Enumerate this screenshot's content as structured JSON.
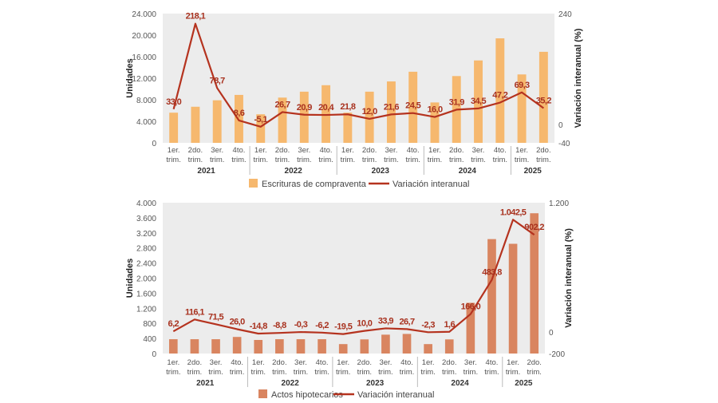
{
  "chart_data": [
    {
      "type": "bar+line",
      "categories": [
        "1er. trim.",
        "2do. trim.",
        "3er. trim.",
        "4to. trim.",
        "1er. trim.",
        "2do. trim.",
        "3er. trim.",
        "4to. trim.",
        "1er. trim.",
        "2do. trim.",
        "3er. trim.",
        "4to. trim.",
        "1er. trim.",
        "2do. trim.",
        "3er. trim.",
        "4to. trim.",
        "1er. trim.",
        "2do. trim."
      ],
      "years": [
        {
          "label": "2021",
          "count": 4
        },
        {
          "label": "2022",
          "count": 4
        },
        {
          "label": "2023",
          "count": 4
        },
        {
          "label": "2024",
          "count": 4
        },
        {
          "label": "2025",
          "count": 2
        }
      ],
      "series": [
        {
          "name": "Escrituras de compraventa",
          "type": "bar",
          "axis": "left",
          "color": "#f6b86e",
          "values": [
            5600,
            6700,
            7900,
            8900,
            5300,
            8400,
            9500,
            10700,
            5600,
            9500,
            11400,
            13200,
            7500,
            12400,
            15300,
            19400,
            12700,
            16900
          ]
        },
        {
          "name": "Variación interanual",
          "type": "line",
          "axis": "right",
          "color": "#b5331f",
          "values": [
            33.0,
            218.1,
            78.7,
            8.6,
            -5.1,
            26.7,
            20.9,
            20.4,
            21.8,
            12.0,
            21.6,
            24.5,
            16.0,
            31.9,
            34.5,
            47.2,
            69.3,
            35.2
          ],
          "labels": [
            "33,0",
            "218,1",
            "78,7",
            "8,6",
            "-5,1",
            "26,7",
            "20,9",
            "20,4",
            "21,8",
            "12,0",
            "21,6",
            "24,5",
            "16,0",
            "31,9",
            "34,5",
            "47,2",
            "69,3",
            "35,2"
          ]
        }
      ],
      "ylabel": "Unidades",
      "ylabel_right": "Variación interanual (%)",
      "ylim": [
        0,
        24000
      ],
      "yticks": [
        0,
        4000,
        8000,
        12000,
        16000,
        20000,
        24000
      ],
      "ytick_labels": [
        "0",
        "4.000",
        "8.000",
        "12.000",
        "16.000",
        "20.000",
        "24.000"
      ],
      "ylim_right": [
        -40,
        240
      ],
      "yticks_right_labels": [
        "240",
        "0",
        "-40"
      ],
      "yticks_right": [
        240,
        0,
        -40
      ],
      "legend": "bottom",
      "grid": false
    },
    {
      "type": "bar+line",
      "categories": [
        "1er. trim.",
        "2do. trim.",
        "3er. trim.",
        "4to. trim.",
        "1er. trim.",
        "2do. trim.",
        "3er. trim.",
        "4to. trim.",
        "1er. trim.",
        "2do. trim.",
        "3er. trim.",
        "4to. trim.",
        "1er. trim.",
        "2do. trim.",
        "3er. trim.",
        "4to. trim.",
        "1er. trim.",
        "2do. trim."
      ],
      "years": [
        {
          "label": "2021",
          "count": 4
        },
        {
          "label": "2022",
          "count": 4
        },
        {
          "label": "2023",
          "count": 4
        },
        {
          "label": "2024",
          "count": 4
        },
        {
          "label": "2025",
          "count": 2
        }
      ],
      "series": [
        {
          "name": "Actos hipotecarios",
          "type": "bar",
          "axis": "left",
          "color": "#d98560",
          "values": [
            380,
            380,
            380,
            440,
            360,
            380,
            380,
            380,
            250,
            375,
            500,
            520,
            250,
            375,
            1345,
            3035,
            2910,
            3720
          ]
        },
        {
          "name": "Variación interanual",
          "type": "line",
          "axis": "right",
          "color": "#b5331f",
          "values": [
            6.2,
            116.1,
            71.5,
            26.0,
            -14.8,
            -8.8,
            -0.3,
            -6.2,
            -19.5,
            10.0,
            33.9,
            26.7,
            -2.3,
            1.6,
            166.0,
            483.8,
            1042.5,
            902.2
          ],
          "labels": [
            "6,2",
            "116,1",
            "71,5",
            "26,0",
            "-14,8",
            "-8,8",
            "-0,3",
            "-6,2",
            "-19,5",
            "10,0",
            "33,9",
            "26,7",
            "-2,3",
            "1,6",
            "166,0",
            "483,8",
            "1.042,5",
            "902,2"
          ]
        }
      ],
      "ylabel": "Unidades",
      "ylabel_right": "Variación interanual (%)",
      "ylim": [
        0,
        4000
      ],
      "yticks": [
        0,
        400,
        800,
        1200,
        1600,
        2000,
        2400,
        2800,
        3200,
        3600,
        4000
      ],
      "ytick_labels": [
        "0",
        "400",
        "800",
        "1.200",
        "1.600",
        "2.000",
        "2.400",
        "2.800",
        "3.200",
        "3.600",
        "4.000"
      ],
      "ylim_right": [
        -200,
        1200
      ],
      "yticks_right": [
        1200,
        0,
        -200
      ],
      "yticks_right_labels": [
        "1.200",
        "0",
        "-200"
      ],
      "legend": "bottom",
      "grid": false
    }
  ]
}
